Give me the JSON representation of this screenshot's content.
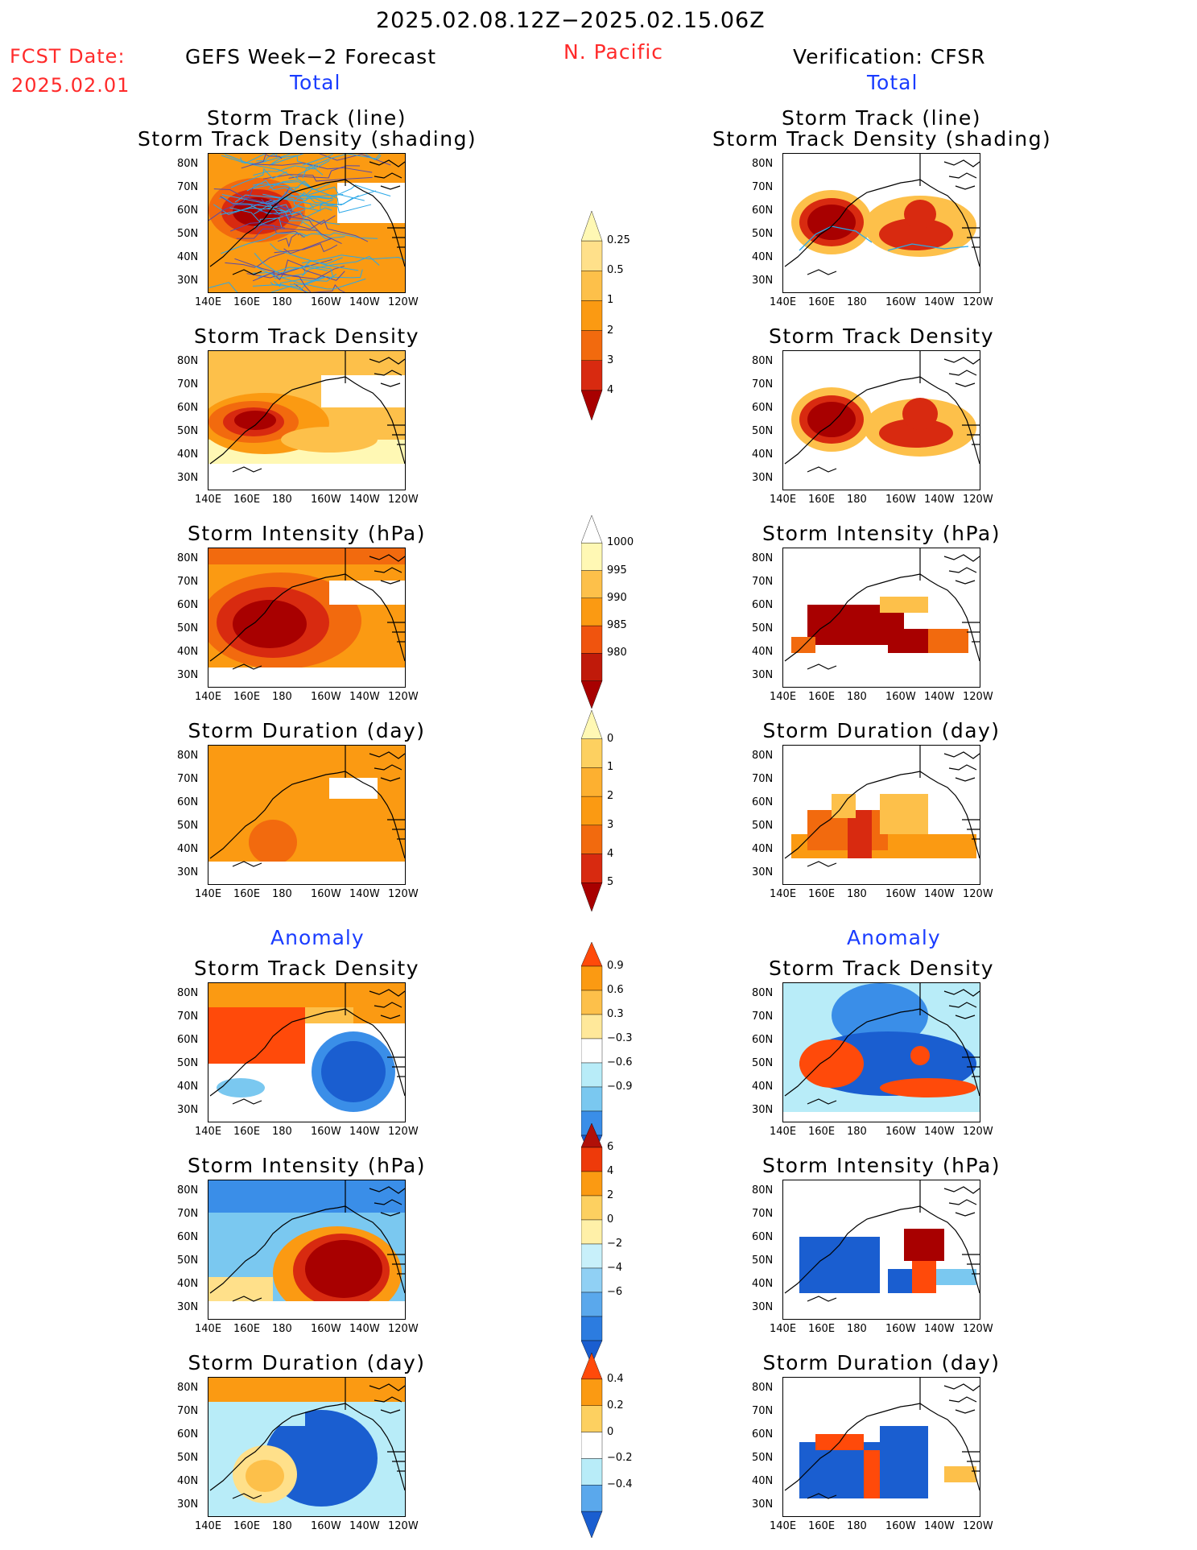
{
  "header": {
    "period": "2025.02.08.12Z−2025.02.15.06Z",
    "region": "N. Pacific",
    "fcst_label": "FCST Date:",
    "fcst_date": "2025.02.01",
    "left_title": "GEFS Week−2 Forecast",
    "right_title": "Verification: CFSR",
    "total_label": "Total",
    "anomaly_label": "Anomaly"
  },
  "chart_data": {
    "type": "heatmap",
    "x_ticks": [
      "140E",
      "160E",
      "180",
      "160W",
      "140W",
      "120W"
    ],
    "y_ticks": [
      "80N",
      "70N",
      "60N",
      "50N",
      "40N",
      "30N"
    ],
    "panel_titles": {
      "track_line": [
        "Storm Track (line)",
        "Storm Track Density (shading)"
      ],
      "density": "Storm Track Density",
      "intensity": "Storm Intensity (hPa)",
      "duration": "Storm Duration (day)"
    },
    "colorbars": [
      {
        "name": "density_total",
        "labels": [
          "0.25",
          "0.5",
          "1",
          "2",
          "3",
          "4"
        ],
        "colors": [
          "#fff8b4",
          "#ffe08a",
          "#fdc04a",
          "#fb9a12",
          "#f26a0e",
          "#d82a10",
          "#a80000"
        ]
      },
      {
        "name": "intensity_total",
        "labels": [
          "1000",
          "995",
          "990",
          "985",
          "980"
        ],
        "colors": [
          "#ffffff",
          "#fff8b4",
          "#fdc04a",
          "#fb9a12",
          "#f0540e",
          "#c01a0a",
          "#a80000"
        ]
      },
      {
        "name": "duration_total",
        "labels": [
          "0",
          "1",
          "2",
          "3",
          "4",
          "5"
        ],
        "colors": [
          "#fff8b4",
          "#fdd060",
          "#fdb030",
          "#fb9a12",
          "#f26a0e",
          "#d82a10",
          "#a80000"
        ]
      },
      {
        "name": "density_anom",
        "labels": [
          "0.9",
          "0.6",
          "0.3",
          "−0.3",
          "−0.6",
          "−0.9"
        ],
        "colors": [
          "#ff4a0a",
          "#fb9a12",
          "#fdc04a",
          "#ffe89a",
          "#ffffff",
          "#b8ecf8",
          "#7ac8f0",
          "#3a8ee8",
          "#1a5ed0"
        ]
      },
      {
        "name": "intensity_anom",
        "labels": [
          "6",
          "4",
          "2",
          "0",
          "−2",
          "−4",
          "−6"
        ],
        "colors": [
          "#b01008",
          "#ee3a0a",
          "#fb9a12",
          "#fdd060",
          "#fff0a8",
          "#c8f0fa",
          "#90d0f4",
          "#5aa8ec",
          "#2c7ce0",
          "#1a5ed0"
        ]
      },
      {
        "name": "duration_anom",
        "labels": [
          "0.4",
          "0.2",
          "0",
          "−0.2",
          "−0.4"
        ],
        "colors": [
          "#ff4a0a",
          "#fb9a12",
          "#fdd060",
          "#ffffff",
          "#b8ecf8",
          "#5aa8ec",
          "#1a5ed0"
        ]
      }
    ],
    "panels": [
      {
        "side": "left",
        "section": "total",
        "title_key": "track_line"
      },
      {
        "side": "left",
        "section": "total",
        "title_key": "density"
      },
      {
        "side": "left",
        "section": "total",
        "title_key": "intensity"
      },
      {
        "side": "left",
        "section": "total",
        "title_key": "duration"
      },
      {
        "side": "left",
        "section": "anomaly",
        "title_key": "density"
      },
      {
        "side": "left",
        "section": "anomaly",
        "title_key": "intensity"
      },
      {
        "side": "left",
        "section": "anomaly",
        "title_key": "duration"
      },
      {
        "side": "right",
        "section": "total",
        "title_key": "track_line"
      },
      {
        "side": "right",
        "section": "total",
        "title_key": "density"
      },
      {
        "side": "right",
        "section": "total",
        "title_key": "intensity"
      },
      {
        "side": "right",
        "section": "total",
        "title_key": "duration"
      },
      {
        "side": "right",
        "section": "anomaly",
        "title_key": "density"
      },
      {
        "side": "right",
        "section": "anomaly",
        "title_key": "intensity"
      },
      {
        "side": "right",
        "section": "anomaly",
        "title_key": "duration"
      }
    ]
  }
}
